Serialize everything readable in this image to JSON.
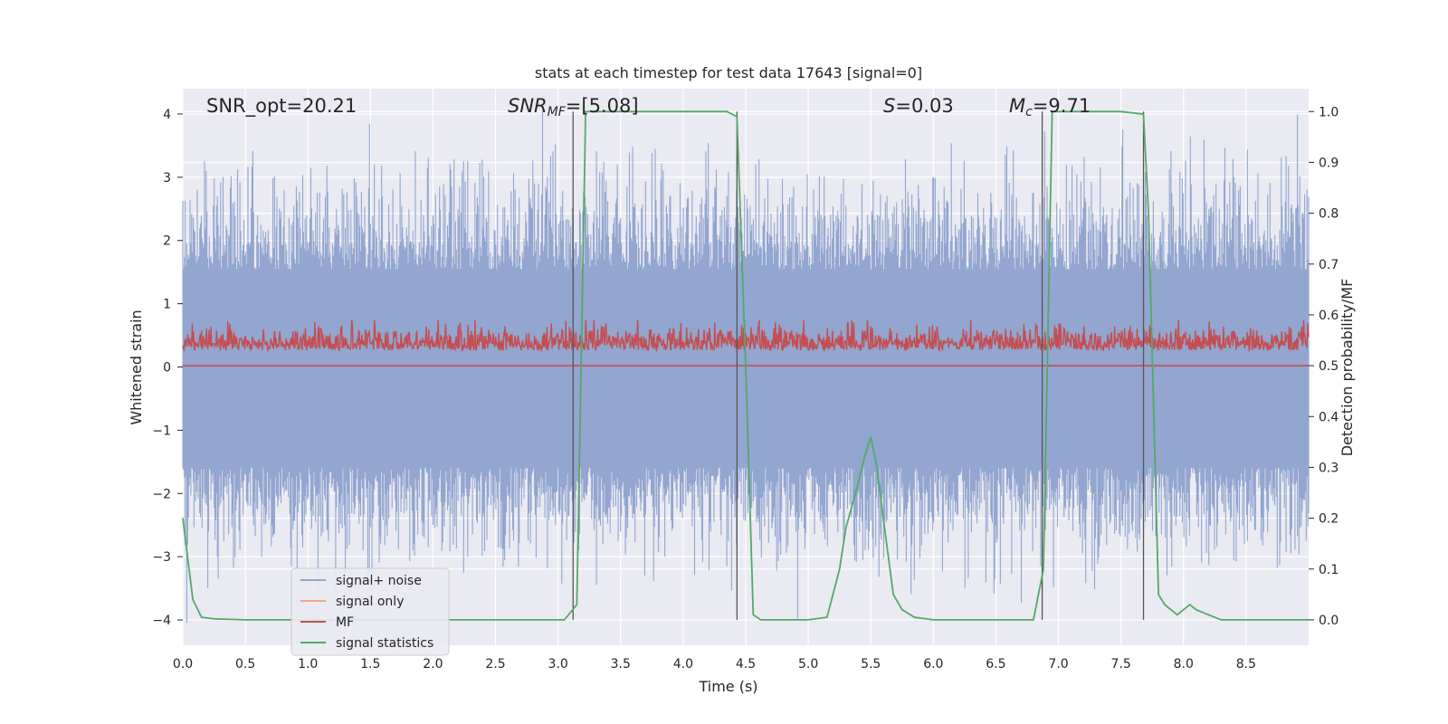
{
  "chart_data": {
    "type": "line",
    "title": "stats at each timestep for test data 17643 [signal=0]",
    "xlabel": "Time (s)",
    "ylabel_left": "Whitened strain",
    "ylabel_right": "Detection probability/MF",
    "xlim": [
      0.0,
      9.0
    ],
    "ylim_left": [
      -4.4,
      4.4
    ],
    "ylim_right": [
      -0.05,
      1.045
    ],
    "x_ticks": [
      "0.0",
      "0.5",
      "1.0",
      "1.5",
      "2.0",
      "2.5",
      "3.0",
      "3.5",
      "4.0",
      "4.5",
      "5.0",
      "5.5",
      "6.0",
      "6.5",
      "7.0",
      "7.5",
      "8.0",
      "8.5"
    ],
    "y_left_ticks": [
      "4",
      "3",
      "2",
      "1",
      "0",
      "−1",
      "−2",
      "−3",
      "−4"
    ],
    "y_right_ticks": [
      "1.0",
      "0.9",
      "0.8",
      "0.7",
      "0.6",
      "0.5",
      "0.4",
      "0.3",
      "0.2",
      "0.1",
      "0.0"
    ],
    "grid": true,
    "legend_placement": "lower-left",
    "annotations": {
      "snr_opt": "SNR_opt=20.21",
      "snr_mf_base": "SNR",
      "snr_mf_sub": "MF",
      "snr_mf_value": "=[5.08]",
      "s_symbol": "S",
      "s_value": "=0.03",
      "mc_base": "M",
      "mc_sub": "c",
      "mc_value": "=9.71"
    },
    "series": [
      {
        "name": "signal+ noise",
        "color": "#92a6cf",
        "description_axis": "left"
      },
      {
        "name": "signal only",
        "color": "#f0a88a",
        "description_axis": "left"
      },
      {
        "name": "MF",
        "color": "#c44e52",
        "description_axis": "right"
      },
      {
        "name": "signal statistics",
        "color": "#55a868",
        "axis": "right",
        "x": [
          0.0,
          0.08,
          0.15,
          0.25,
          0.5,
          1.0,
          1.5,
          2.0,
          2.5,
          3.0,
          3.05,
          3.15,
          3.22,
          3.3,
          3.5,
          4.0,
          4.35,
          4.43,
          4.5,
          4.56,
          4.62,
          4.8,
          5.0,
          5.15,
          5.25,
          5.3,
          5.4,
          5.45,
          5.5,
          5.55,
          5.6,
          5.68,
          5.75,
          5.85,
          6.0,
          6.5,
          6.8,
          6.88,
          6.95,
          7.0,
          7.5,
          7.68,
          7.72,
          7.8,
          7.85,
          7.95,
          8.05,
          8.1,
          8.2,
          8.3,
          8.5,
          9.0
        ],
        "y": [
          0.2,
          0.04,
          0.005,
          0.002,
          0.0,
          0.0,
          0.0,
          0.0,
          0.0,
          0.0,
          0.0,
          0.03,
          1.0,
          1.0,
          1.0,
          1.0,
          1.0,
          0.99,
          0.5,
          0.01,
          0.0,
          0.0,
          0.0,
          0.005,
          0.1,
          0.18,
          0.27,
          0.32,
          0.36,
          0.3,
          0.2,
          0.05,
          0.02,
          0.005,
          0.0,
          0.0,
          0.0,
          0.1,
          1.0,
          1.0,
          1.0,
          0.995,
          0.8,
          0.05,
          0.03,
          0.01,
          0.03,
          0.02,
          0.01,
          0.0,
          0.0,
          0.0
        ]
      }
    ],
    "vertical_markers": [
      3.12,
      4.43,
      6.87,
      7.68
    ]
  }
}
